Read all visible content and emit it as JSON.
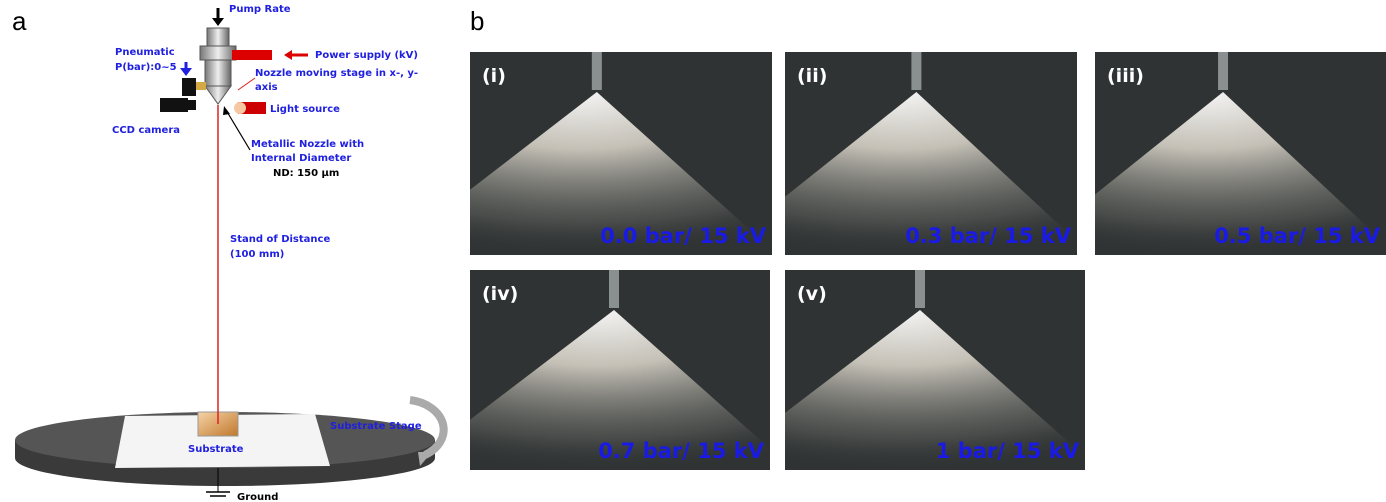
{
  "panels": [
    {
      "label": "a"
    },
    {
      "label": "b"
    }
  ],
  "diagram": {
    "labels": [
      "Pump Rate",
      "Power supply (kV)",
      "Pneumatic",
      "P(bar):0~5",
      "Nozzle moving stage in x-, y-",
      "axis",
      "Light source",
      "CCD camera",
      "Metallic Nozzle with",
      "Internal Diameter",
      "ND: 150 µm",
      "Stand of Distance",
      "(100 mm)",
      "Substrate",
      "Substrate Stage",
      "Ground"
    ]
  },
  "photos": [
    {
      "index": "(i)",
      "caption": "0.0 bar/ 15 kV"
    },
    {
      "index": "(ii)",
      "caption": "0.3 bar/ 15 kV"
    },
    {
      "index": "(iii)",
      "caption": "0.5 bar/ 15 kV"
    },
    {
      "index": "(iv)",
      "caption": "0.7 bar/ 15 kV"
    },
    {
      "index": "(v)",
      "caption": "1 bar/ 15 kV"
    }
  ]
}
